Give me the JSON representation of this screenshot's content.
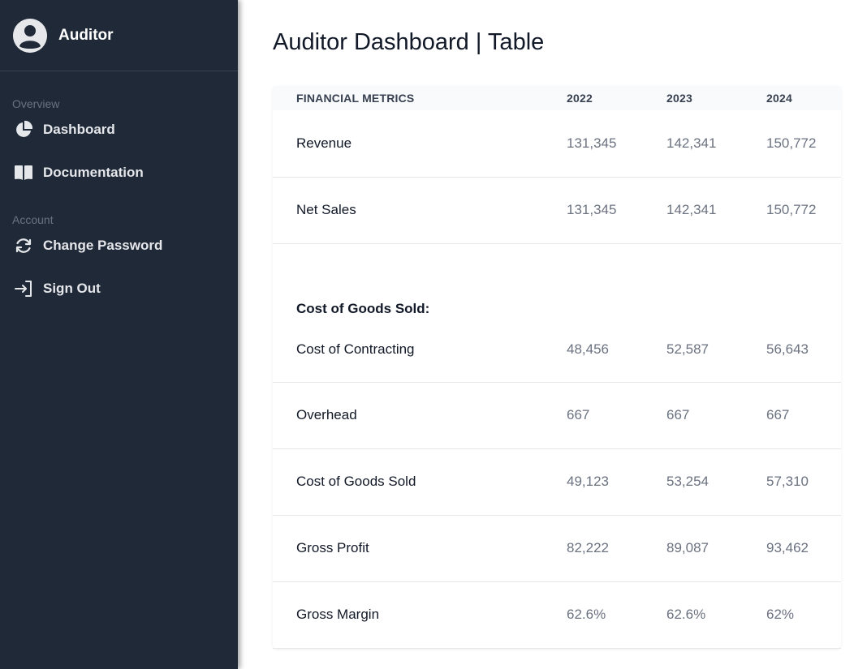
{
  "sidebar": {
    "user_name": "Auditor",
    "sections": [
      {
        "label": "Overview",
        "items": [
          {
            "label": "Dashboard",
            "icon": "pie-chart-icon"
          },
          {
            "label": "Documentation",
            "icon": "book-icon"
          }
        ]
      },
      {
        "label": "Account",
        "items": [
          {
            "label": "Change Password",
            "icon": "refresh-icon"
          },
          {
            "label": "Sign Out",
            "icon": "sign-out-icon"
          }
        ]
      }
    ]
  },
  "main": {
    "title": "Auditor Dashboard | Table",
    "table": {
      "headers": [
        "FINANCIAL METRICS",
        "2022",
        "2023",
        "2024"
      ],
      "rows_top": [
        {
          "metric": "Revenue",
          "values": [
            "131,345",
            "142,341",
            "150,772"
          ]
        },
        {
          "metric": "Net Sales",
          "values": [
            "131,345",
            "142,341",
            "150,772"
          ]
        }
      ],
      "section_heading": "Cost of Goods Sold:",
      "rows_section": [
        {
          "metric": "Cost of Contracting",
          "values": [
            "48,456",
            "52,587",
            "56,643"
          ]
        },
        {
          "metric": "Overhead",
          "values": [
            "667",
            "667",
            "667"
          ]
        },
        {
          "metric": "Cost of Goods Sold",
          "values": [
            "49,123",
            "53,254",
            "57,310"
          ]
        },
        {
          "metric": "Gross Profit",
          "values": [
            "82,222",
            "89,087",
            "93,462"
          ]
        },
        {
          "metric": "Gross Margin",
          "values": [
            "62.6%",
            "62.6%",
            "62%"
          ]
        }
      ]
    }
  },
  "colors": {
    "sidebar_bg": "#1f2937",
    "sidebar_text": "#e5e7eb",
    "section_label": "#6b7280",
    "header_bg": "#f9fafb",
    "value_text": "#6b7280"
  }
}
